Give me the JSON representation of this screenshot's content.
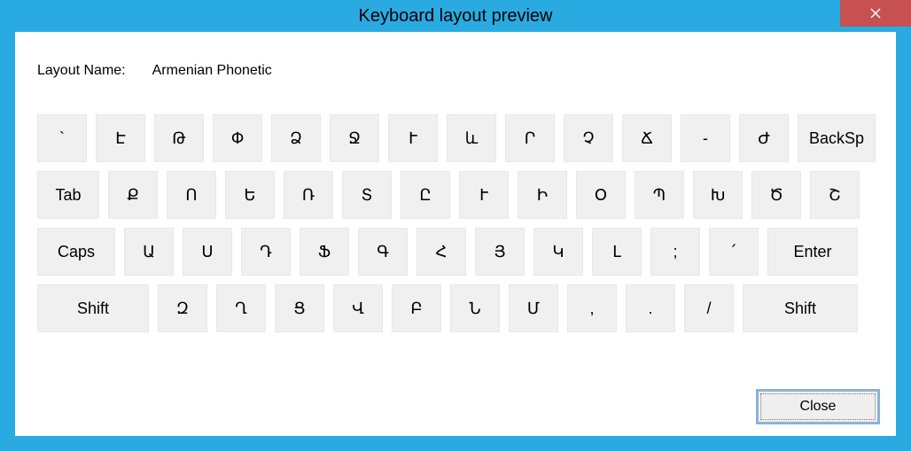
{
  "window": {
    "title": "Keyboard layout preview",
    "titlebar_bg": "#29abe2",
    "close_bg": "#c75050",
    "close_icon_color": "#ffffff"
  },
  "layout": {
    "label": "Layout Name:",
    "value": "Armenian Phonetic"
  },
  "keyboard": {
    "key_bg": "#f0f0f0",
    "key_border": "#e8e8e8",
    "rows": [
      {
        "keys": [
          {
            "label": "`",
            "w": "std"
          },
          {
            "label": "Է",
            "w": "std"
          },
          {
            "label": "Թ",
            "w": "std"
          },
          {
            "label": "Փ",
            "w": "std"
          },
          {
            "label": "Ձ",
            "w": "std"
          },
          {
            "label": "Ջ",
            "w": "std"
          },
          {
            "label": "Ւ",
            "w": "std"
          },
          {
            "label": "և",
            "w": "std"
          },
          {
            "label": "Ր",
            "w": "std"
          },
          {
            "label": "Չ",
            "w": "std"
          },
          {
            "label": "Ճ",
            "w": "std"
          },
          {
            "label": "-",
            "w": "std"
          },
          {
            "label": "Ժ",
            "w": "std"
          },
          {
            "label": "BackSp",
            "w": "backsp"
          }
        ]
      },
      {
        "keys": [
          {
            "label": "Tab",
            "w": "tab"
          },
          {
            "label": "Ք",
            "w": "tab-key"
          },
          {
            "label": "Ո",
            "w": "tab-key"
          },
          {
            "label": "Ե",
            "w": "tab-key"
          },
          {
            "label": "Ռ",
            "w": "tab-key"
          },
          {
            "label": "Տ",
            "w": "tab-key"
          },
          {
            "label": "Ը",
            "w": "tab-key"
          },
          {
            "label": "Ւ",
            "w": "tab-key"
          },
          {
            "label": "Ի",
            "w": "tab-key"
          },
          {
            "label": "Օ",
            "w": "tab-key"
          },
          {
            "label": "Պ",
            "w": "tab-key"
          },
          {
            "label": "Խ",
            "w": "tab-key"
          },
          {
            "label": "Ծ",
            "w": "tab-key"
          },
          {
            "label": "Շ",
            "w": "tab-key"
          }
        ]
      },
      {
        "keys": [
          {
            "label": "Caps",
            "w": "caps"
          },
          {
            "label": "Ա",
            "w": "caps-key"
          },
          {
            "label": "Ս",
            "w": "caps-key"
          },
          {
            "label": "Դ",
            "w": "caps-key"
          },
          {
            "label": "Ֆ",
            "w": "caps-key"
          },
          {
            "label": "Գ",
            "w": "caps-key"
          },
          {
            "label": "Հ",
            "w": "caps-key"
          },
          {
            "label": "Յ",
            "w": "caps-key"
          },
          {
            "label": "Կ",
            "w": "caps-key"
          },
          {
            "label": "Լ",
            "w": "caps-key"
          },
          {
            "label": ";",
            "w": "caps-key"
          },
          {
            "label": "՛",
            "w": "caps-key"
          },
          {
            "label": "Enter",
            "w": "enter"
          }
        ]
      },
      {
        "keys": [
          {
            "label": "Shift",
            "w": "shift-l"
          },
          {
            "label": "Զ",
            "w": "shift-key"
          },
          {
            "label": "Ղ",
            "w": "shift-key"
          },
          {
            "label": "Ց",
            "w": "shift-key"
          },
          {
            "label": "Վ",
            "w": "shift-key"
          },
          {
            "label": "Բ",
            "w": "shift-key"
          },
          {
            "label": "Ն",
            "w": "shift-key"
          },
          {
            "label": "Մ",
            "w": "shift-key"
          },
          {
            "label": ",",
            "w": "shift-key"
          },
          {
            "label": ".",
            "w": "shift-key"
          },
          {
            "label": "/",
            "w": "shift-key"
          },
          {
            "label": "Shift",
            "w": "shift-r"
          }
        ]
      }
    ]
  },
  "footer": {
    "close_label": "Close"
  }
}
